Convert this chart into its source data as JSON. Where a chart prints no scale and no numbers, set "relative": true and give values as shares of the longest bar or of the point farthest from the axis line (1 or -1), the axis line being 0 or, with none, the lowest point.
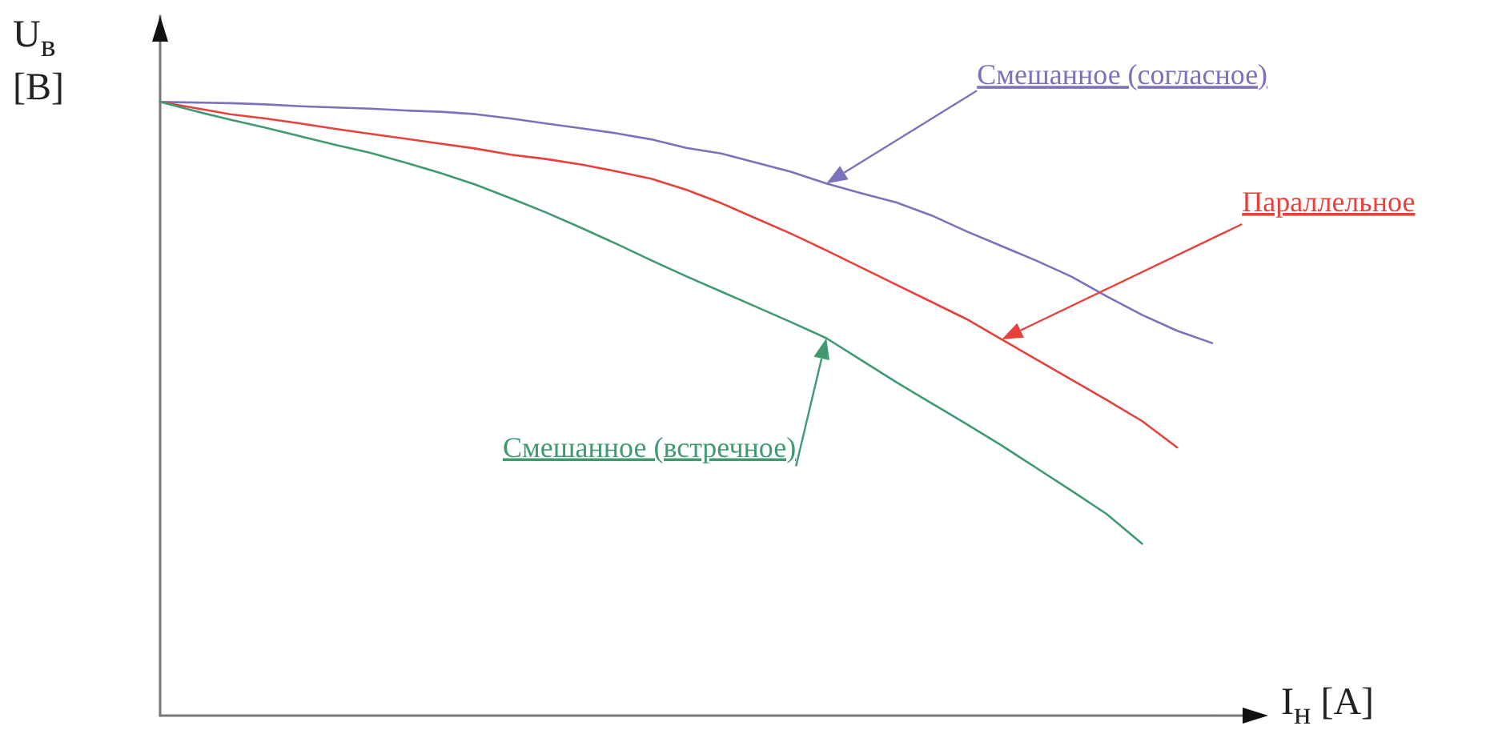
{
  "chart_data": {
    "type": "line",
    "relative": true,
    "xlabel": "I$_{н}$ [А]",
    "ylabel": "U$_{в}$ [В]",
    "marker": "none",
    "legend": false,
    "grid": false,
    "categories": [
      null,
      null,
      null,
      null,
      null,
      null,
      null,
      null,
      null,
      null,
      null,
      null,
      null,
      null,
      null,
      null,
      null,
      null,
      null,
      null,
      null,
      null,
      null,
      null,
      null,
      null,
      null,
      null,
      null,
      null,
      null
    ],
    "series": [
      {
        "name": "Смешанное (согласное)",
        "color": "#7a72bb",
        "values": [
          1.0,
          0.999,
          0.998,
          0.996,
          0.993,
          0.991,
          0.989,
          0.986,
          0.984,
          0.98,
          0.973,
          0.965,
          0.957,
          0.949,
          0.939,
          0.925,
          0.916,
          0.901,
          0.886,
          0.867,
          0.851,
          0.836,
          0.815,
          0.789,
          0.765,
          0.741,
          0.715,
          0.683,
          0.653,
          0.627,
          0.607
        ]
      },
      {
        "name": "Параллельное",
        "color": "#e8403a",
        "values": [
          1.0,
          0.99,
          0.98,
          0.973,
          0.965,
          0.956,
          0.948,
          0.94,
          0.932,
          0.924,
          0.914,
          0.907,
          0.898,
          0.887,
          0.875,
          0.857,
          0.835,
          0.81,
          0.785,
          0.758,
          0.73,
          0.702,
          0.674,
          0.646,
          0.613,
          0.58,
          0.547,
          0.514,
          0.48,
          0.437,
          null
        ]
      },
      {
        "name": "Смешанное (встречное)",
        "color": "#3f9a70",
        "values": [
          1.0,
          0.985,
          0.971,
          0.958,
          0.944,
          0.93,
          0.917,
          0.901,
          0.884,
          0.865,
          0.843,
          0.82,
          0.795,
          0.769,
          0.742,
          0.716,
          0.691,
          0.666,
          0.641,
          0.615,
          0.579,
          0.543,
          0.509,
          0.475,
          0.44,
          0.403,
          0.366,
          0.328,
          0.28,
          null,
          null
        ]
      }
    ]
  }
}
